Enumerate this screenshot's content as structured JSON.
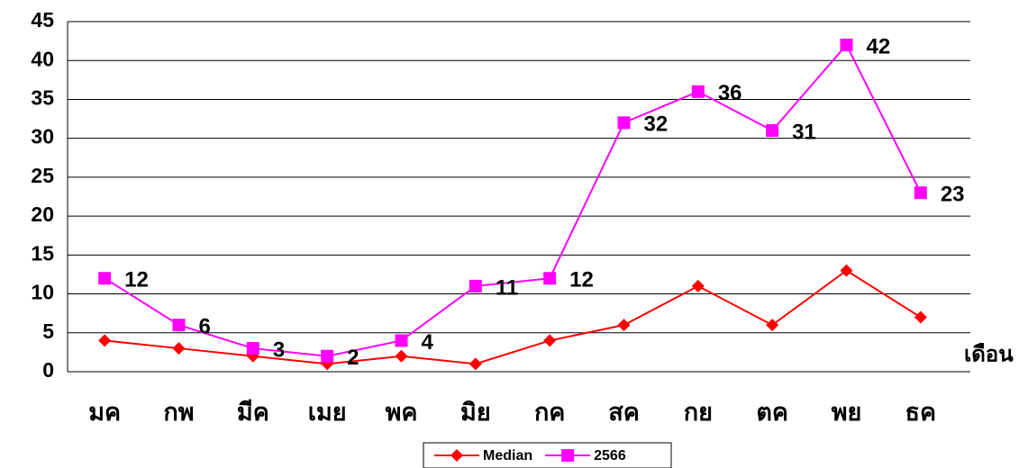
{
  "chart_data": {
    "type": "line",
    "x_label": "เดือน",
    "categories": [
      "มค",
      "กพ",
      "มีค",
      "เมย",
      "พค",
      "มิย",
      "กค",
      "สค",
      "กย",
      "ตค",
      "พย",
      "ธค"
    ],
    "series": [
      {
        "name": "Median",
        "color": "#ff0000",
        "marker": "diamond",
        "values": [
          4,
          3,
          2,
          1,
          2,
          1,
          4,
          6,
          11,
          6,
          13,
          7
        ]
      },
      {
        "name": "2566",
        "color": "#ff00ff",
        "marker": "square",
        "values": [
          12,
          6,
          3,
          2,
          4,
          11,
          12,
          32,
          36,
          31,
          42,
          23
        ],
        "data_labels": true
      }
    ],
    "ylim": [
      0,
      45
    ],
    "yticks": [
      0,
      5,
      10,
      15,
      20,
      25,
      30,
      35,
      40,
      45
    ],
    "grid": true,
    "legend": "bottom"
  }
}
